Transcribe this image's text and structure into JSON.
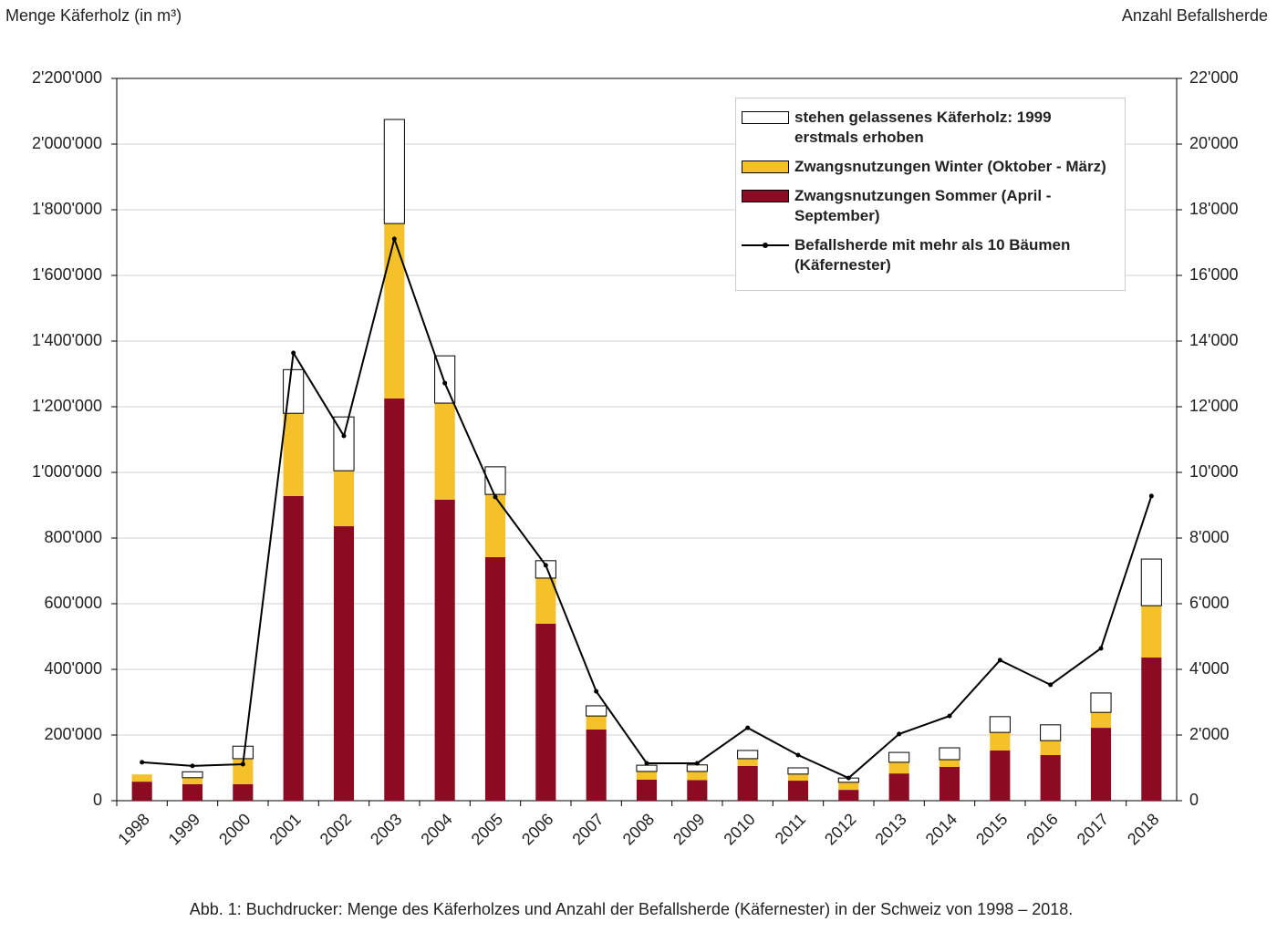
{
  "chart_data": {
    "type": "bar",
    "stacked": true,
    "y_title": "Menge Käferholz (in m³)",
    "y2_title": "Anzahl Befallsherde",
    "caption": "Abb. 1: Buchdrucker: Menge des Käferholzes und Anzahl der Befallsherde (Käfernester) in der Schweiz von 1998 – 2018.",
    "categories": [
      "1998",
      "1999",
      "2000",
      "2001",
      "2002",
      "2003",
      "2004",
      "2005",
      "2006",
      "2007",
      "2008",
      "2009",
      "2010",
      "2011",
      "2012",
      "2013",
      "2014",
      "2015",
      "2016",
      "2017",
      "2018"
    ],
    "series": [
      {
        "name": "stehen gelassenes Käferholz: 1999 erstmals erhoben",
        "type": "bar",
        "color": "#ffffff",
        "values": [
          0,
          18000,
          38000,
          133000,
          164000,
          317000,
          144000,
          84000,
          53000,
          31000,
          19000,
          20000,
          25000,
          19000,
          13000,
          30000,
          36000,
          48000,
          48000,
          59000,
          142000
        ]
      },
      {
        "name": "Zwangsnutzungen Winter (Oktober - März)",
        "type": "bar",
        "color": "#f4c12b",
        "values": [
          22000,
          20000,
          78000,
          252000,
          169000,
          533000,
          294000,
          191000,
          139000,
          41000,
          25000,
          26000,
          22000,
          20000,
          23000,
          34000,
          22000,
          55000,
          44000,
          47000,
          158000
        ]
      },
      {
        "name": "Zwangsnutzungen Sommer (April - September)",
        "type": "bar",
        "color": "#8c0b22",
        "values": [
          58000,
          50000,
          50000,
          928000,
          836000,
          1225000,
          917000,
          742000,
          539000,
          217000,
          64000,
          63000,
          106000,
          61000,
          33000,
          83000,
          103000,
          153000,
          139000,
          222000,
          436000
        ]
      },
      {
        "name": "Befallsherde mit mehr als 10 Bäumen (Käfernester)",
        "type": "line",
        "axis": "y2",
        "color": "#000000",
        "values": [
          1170,
          1060,
          1110,
          13640,
          11110,
          17110,
          12720,
          9250,
          7170,
          3330,
          1140,
          1140,
          2220,
          1390,
          690,
          2030,
          2580,
          4280,
          3530,
          4640,
          9280
        ]
      }
    ],
    "ylim": [
      0,
      2200000
    ],
    "yticks": [
      0,
      {
        "value": 200000,
        "label": "200'000"
      },
      {
        "value": 400000,
        "label": "400'000"
      },
      {
        "value": 600000,
        "label": "600'000"
      },
      {
        "value": 800000,
        "label": "800'000"
      },
      {
        "value": 1000000,
        "label": "1'000'000"
      },
      {
        "value": 1200000,
        "label": "1'200'000"
      },
      {
        "value": 1400000,
        "label": "1'400'000"
      },
      {
        "value": 1600000,
        "label": "1'600'000"
      },
      {
        "value": 1800000,
        "label": "1'800'000"
      },
      {
        "value": 2000000,
        "label": "2'000'000"
      },
      {
        "value": 2200000,
        "label": "2'200'000"
      }
    ],
    "y2lim": [
      0,
      22000
    ],
    "y2ticks": [
      0,
      {
        "value": 2000,
        "label": "2'000"
      },
      {
        "value": 4000,
        "label": "4'000"
      },
      {
        "value": 6000,
        "label": "6'000"
      },
      {
        "value": 8000,
        "label": "8'000"
      },
      {
        "value": 10000,
        "label": "10'000"
      },
      {
        "value": 12000,
        "label": "12'000"
      },
      {
        "value": 14000,
        "label": "14'000"
      },
      {
        "value": 16000,
        "label": "16'000"
      },
      {
        "value": 18000,
        "label": "18'000"
      },
      {
        "value": 20000,
        "label": "20'000"
      },
      {
        "value": 22000,
        "label": "22'000"
      }
    ],
    "grid": true,
    "legend": "upper right"
  }
}
